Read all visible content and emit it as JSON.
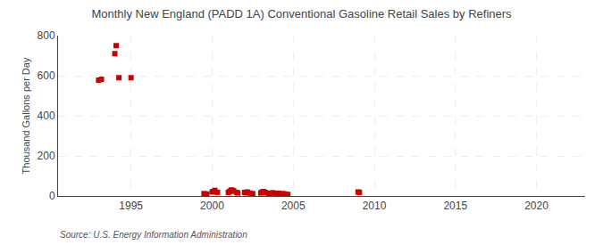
{
  "chart_data": {
    "type": "scatter",
    "title": "Monthly New England (PADD 1A) Conventional Gasoline Retail Sales by Refiners",
    "ylabel": "Thousand Gallons per Day",
    "annotations": [
      "Source: U.S. Energy Information Administration"
    ],
    "color": "#cc0000",
    "marker": "square",
    "grid": true,
    "xlim": [
      1990.5,
      2023
    ],
    "ylim": [
      0,
      800
    ],
    "xticks": [
      1995,
      2000,
      2005,
      2010,
      2015,
      2020
    ],
    "yticks": [
      0,
      200,
      400,
      600,
      800
    ],
    "x": [
      1993.0,
      1993.17,
      1994.0,
      1994.08,
      1994.25,
      1995.0,
      1999.5,
      1999.67,
      2000.0,
      2000.08,
      2000.17,
      2000.33,
      2001.0,
      2001.08,
      2001.17,
      2001.25,
      2001.33,
      2001.5,
      2001.58,
      2002.0,
      2002.08,
      2002.17,
      2002.33,
      2002.5,
      2003.0,
      2003.08,
      2003.17,
      2003.25,
      2003.33,
      2003.5,
      2003.67,
      2003.75,
      2004.0,
      2004.08,
      2004.17,
      2004.33,
      2004.5,
      2004.67,
      2009.0,
      2009.08
    ],
    "values": [
      578,
      582,
      710,
      750,
      590,
      590,
      12,
      10,
      20,
      22,
      28,
      18,
      18,
      22,
      30,
      28,
      25,
      18,
      15,
      18,
      16,
      20,
      14,
      12,
      15,
      20,
      22,
      18,
      16,
      12,
      14,
      16,
      12,
      14,
      10,
      12,
      10,
      8,
      20,
      18
    ]
  }
}
